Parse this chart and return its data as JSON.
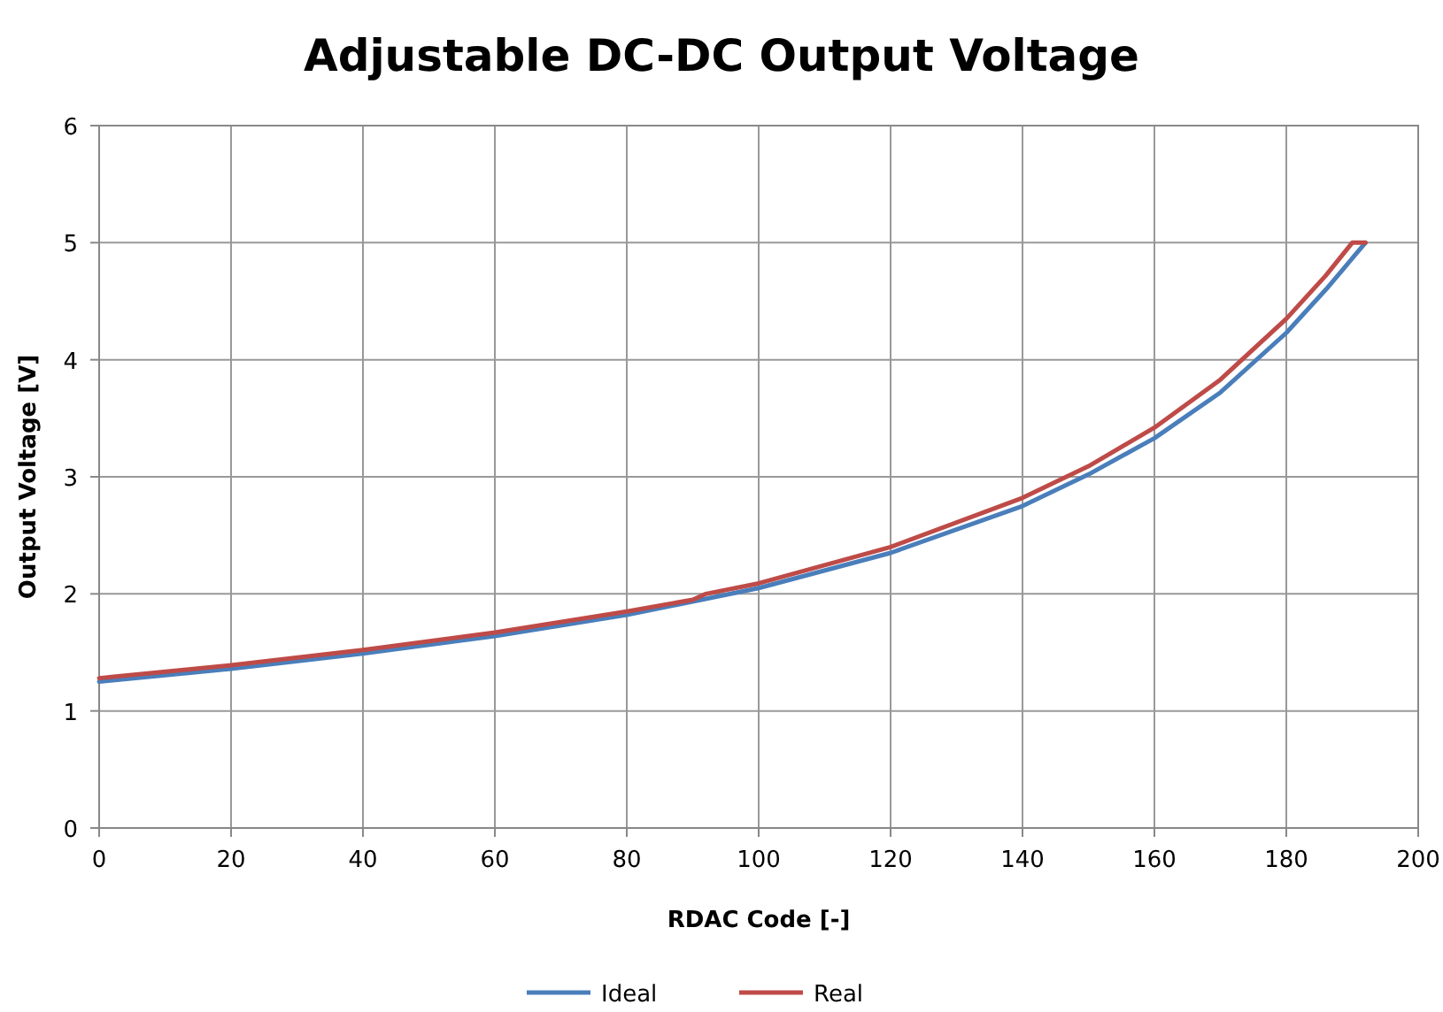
{
  "chart_data": {
    "type": "line",
    "title": "Adjustable DC-DC Output Voltage",
    "xlabel": "RDAC Code [-]",
    "ylabel": "Output Voltage [V]",
    "xlim": [
      0,
      200
    ],
    "xticks": [
      0,
      20,
      40,
      60,
      80,
      100,
      120,
      140,
      160,
      180,
      200
    ],
    "ylim": [
      0,
      6
    ],
    "yticks": [
      0,
      1,
      2,
      3,
      4,
      5,
      6
    ],
    "grid": true,
    "legend": "bottom",
    "marker": "none",
    "line_style": "solid",
    "series": [
      {
        "name": "Ideal",
        "color": "#4a7ebb",
        "x": [
          0,
          20,
          40,
          60,
          80,
          100,
          120,
          140,
          150,
          160,
          170,
          180,
          186,
          192
        ],
        "values": [
          1.25,
          1.36,
          1.49,
          1.64,
          1.82,
          2.05,
          2.35,
          2.75,
          3.02,
          3.33,
          3.72,
          4.23,
          4.6,
          5.0
        ]
      },
      {
        "name": "Real",
        "color": "#be4b48",
        "x": [
          0,
          20,
          40,
          60,
          80,
          90,
          92,
          100,
          120,
          140,
          150,
          160,
          170,
          180,
          186,
          190,
          192
        ],
        "values": [
          1.28,
          1.39,
          1.52,
          1.67,
          1.85,
          1.95,
          2.0,
          2.09,
          2.4,
          2.82,
          3.09,
          3.42,
          3.83,
          4.35,
          4.72,
          5.0,
          5.0
        ]
      }
    ]
  }
}
